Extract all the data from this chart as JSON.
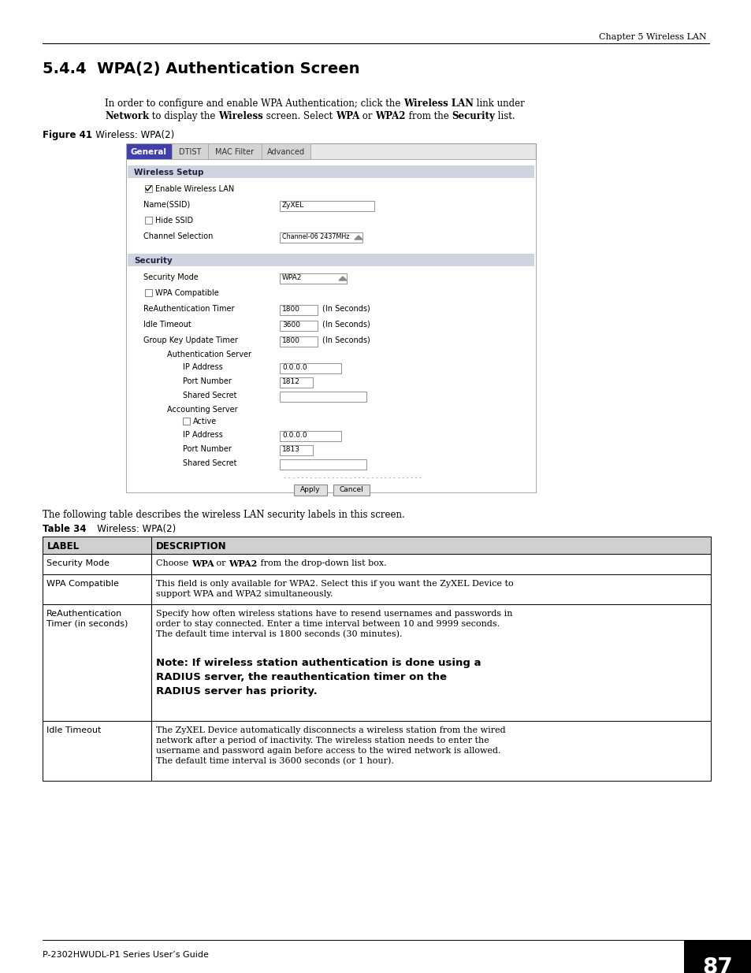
{
  "page_title_right": "Chapter 5 Wireless LAN",
  "section_title": "5.4.4  WPA(2) Authentication Screen",
  "figure_label": "Figure 41",
  "figure_title": "   Wireless: WPA(2)",
  "table_label": "Table 34",
  "table_title": "   Wireless: WPA(2)",
  "following_text": "The following table describes the wireless LAN security labels in this screen.",
  "tab_labels": [
    "General",
    "DTIST",
    "MAC Filter",
    "Advanced"
  ],
  "tab_active_color": "#4040aa",
  "tab_inactive_color": "#d4d4d4",
  "section_header_color": "#ccd5e0",
  "wireless_setup_label": "Wireless Setup",
  "security_label": "Security",
  "page_number": "87",
  "footer_text": "P-2302HWUDL-P1 Series User’s Guide",
  "background_color": "#ffffff"
}
